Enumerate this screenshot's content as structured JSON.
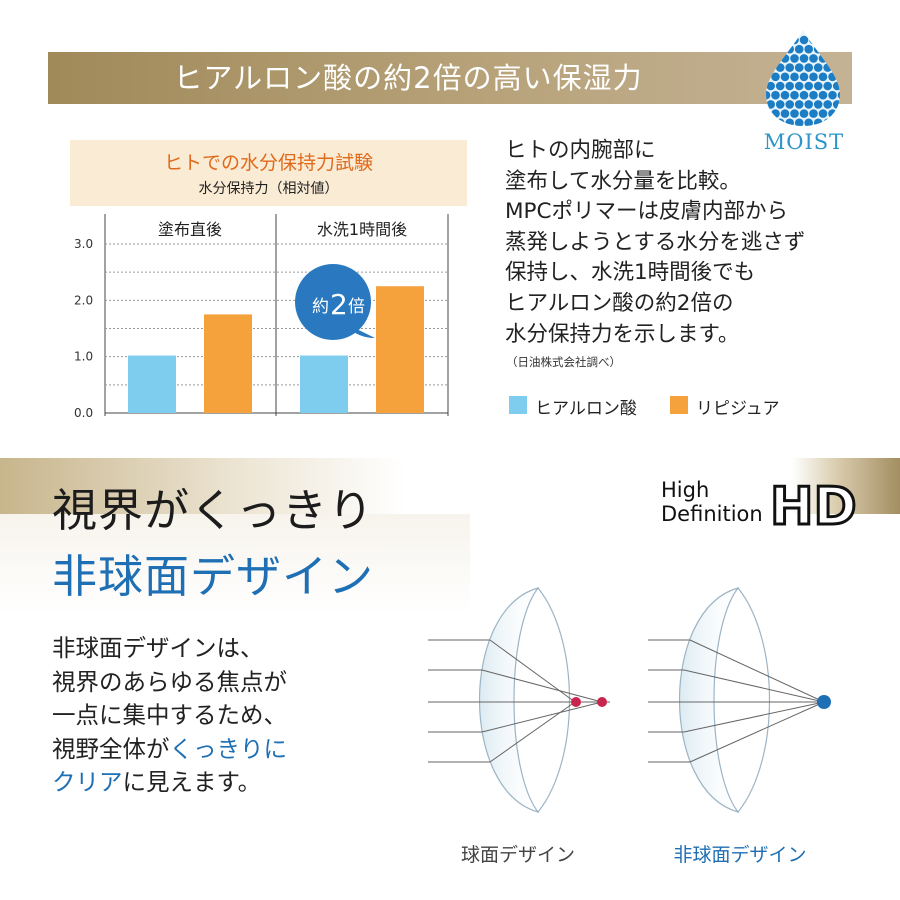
{
  "banner": {
    "title": "ヒアルロン酸の約2倍の高い保湿力"
  },
  "moist_badge": {
    "label": "MOIST",
    "color": "#2d95c9"
  },
  "chart": {
    "title": "ヒトでの水分保持力試験",
    "subtitle": "水分保持力（相対値）",
    "callout": {
      "prefix": "約",
      "value": "2",
      "suffix": "倍"
    }
  },
  "chart_data": {
    "type": "bar",
    "categories": [
      "塗布直後",
      "水洗1時間後"
    ],
    "series": [
      {
        "name": "ヒアルロン酸",
        "values": [
          1.02,
          1.02
        ],
        "color": "#7fcdee"
      },
      {
        "name": "リピジュア",
        "values": [
          1.75,
          2.25
        ],
        "color": "#f5a13c"
      }
    ],
    "yticks": [
      "3.0",
      "2.0",
      "1.0",
      "0.0"
    ],
    "ylim": [
      0,
      3
    ],
    "grid": true
  },
  "description": {
    "lines": [
      "ヒトの内腕部に",
      "塗布して水分量を比較。",
      "MPCポリマーは皮膚内部から",
      "蒸発しようとする水分を逃さず",
      "保持し、水洗1時間後でも",
      "ヒアルロン酸の約2倍の",
      "水分保持力を示します。"
    ],
    "source": "（日油株式会社調べ）"
  },
  "legend": [
    {
      "label": "ヒアルロン酸",
      "color": "#7fcdee"
    },
    {
      "label": "リピジュア",
      "color": "#f5a13c"
    }
  ],
  "section2": {
    "heading_line1": "視界がくっきり",
    "heading_line2": "非球面デザイン",
    "hd_badge": {
      "line1": "High",
      "line2": "Definition",
      "mark": "HD"
    },
    "body": {
      "line1": "非球面デザインは、",
      "line2": "視界のあらゆる焦点が",
      "line3": "一点に集中するため、",
      "line4_plain": "視野全体が",
      "line4_blue": "くっきりに",
      "line5_blue": "クリア",
      "line5_plain": "に見えます。"
    },
    "captions": {
      "spherical": "球面デザイン",
      "aspherical": "非球面デザイン"
    },
    "accent_color": "#1f6fb4"
  }
}
